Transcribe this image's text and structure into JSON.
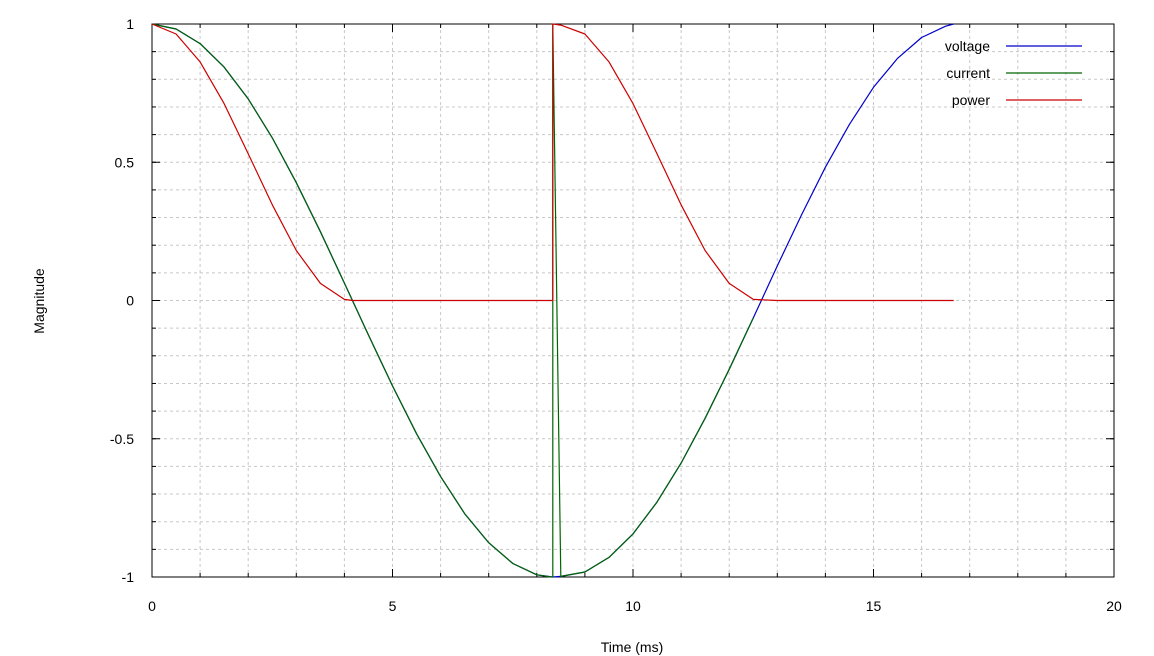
{
  "chart_data": {
    "type": "line",
    "title": "",
    "xlabel": "Time (ms)",
    "ylabel": "Magnitude",
    "xlim": [
      0,
      20
    ],
    "ylim": [
      -1,
      1
    ],
    "x_ticks": [
      0,
      5,
      10,
      15,
      20
    ],
    "x_tick_labels": [
      "0",
      "5",
      "10",
      "15",
      "20"
    ],
    "y_ticks": [
      -1,
      -0.5,
      0,
      0.5,
      1
    ],
    "y_tick_labels": [
      "-1",
      "-0.5",
      "0",
      "0.5",
      "1"
    ],
    "x_minor_step": 1,
    "y_minor_step": 0.1,
    "grid": true,
    "legend_position": "top-right",
    "series": [
      {
        "name": "voltage",
        "color": "#0000cc",
        "x": [
          0,
          0.5,
          1,
          1.5,
          2,
          2.5,
          3,
          3.5,
          4,
          4.5,
          5,
          5.5,
          6,
          6.5,
          7,
          7.5,
          8,
          8.333,
          8.5,
          9,
          9.5,
          10,
          10.5,
          11,
          11.5,
          12,
          12.5,
          13,
          13.5,
          14,
          14.5,
          15,
          15.5,
          16,
          16.5,
          16.667
        ],
        "y": [
          1,
          0.982,
          0.929,
          0.844,
          0.729,
          0.588,
          0.426,
          0.249,
          0.063,
          -0.125,
          -0.309,
          -0.482,
          -0.637,
          -0.771,
          -0.876,
          -0.951,
          -0.992,
          -1,
          -0.998,
          -0.982,
          -0.929,
          -0.844,
          -0.729,
          -0.588,
          -0.426,
          -0.249,
          -0.063,
          0.125,
          0.309,
          0.482,
          0.637,
          0.771,
          0.876,
          0.951,
          0.992,
          1
        ]
      },
      {
        "name": "current",
        "color": "#006600",
        "x": [
          0,
          0.5,
          1,
          1.5,
          2,
          2.5,
          3,
          3.5,
          4,
          4.5,
          5,
          5.5,
          6,
          6.5,
          7,
          7.5,
          8,
          8.3,
          8.333,
          8.333,
          8.5,
          9,
          9.5,
          10,
          10.5,
          11,
          11.5,
          12,
          12.5
        ],
        "y": [
          1,
          0.982,
          0.929,
          0.844,
          0.729,
          0.588,
          0.426,
          0.249,
          0.063,
          -0.125,
          -0.309,
          -0.482,
          -0.637,
          -0.771,
          -0.876,
          -0.951,
          -0.992,
          -1,
          -1,
          1,
          -0.998,
          -0.982,
          -0.929,
          -0.844,
          -0.729,
          -0.588,
          -0.426,
          -0.249,
          -0.063
        ]
      },
      {
        "name": "power",
        "color": "#cc0000",
        "x": [
          0,
          0.5,
          1,
          1.5,
          2,
          2.5,
          3,
          3.5,
          4,
          4.167,
          5,
          6,
          7,
          8,
          8.333,
          8.333,
          8.5,
          9,
          9.5,
          10,
          10.5,
          11,
          11.5,
          12,
          12.5,
          13,
          14,
          15,
          16,
          16.667
        ],
        "y": [
          1,
          0.964,
          0.863,
          0.712,
          0.531,
          0.346,
          0.181,
          0.062,
          0.004,
          0,
          0,
          0,
          0,
          0,
          0,
          1,
          0.996,
          0.964,
          0.863,
          0.712,
          0.531,
          0.346,
          0.181,
          0.062,
          0.004,
          0,
          0,
          0,
          0,
          0
        ]
      }
    ]
  }
}
